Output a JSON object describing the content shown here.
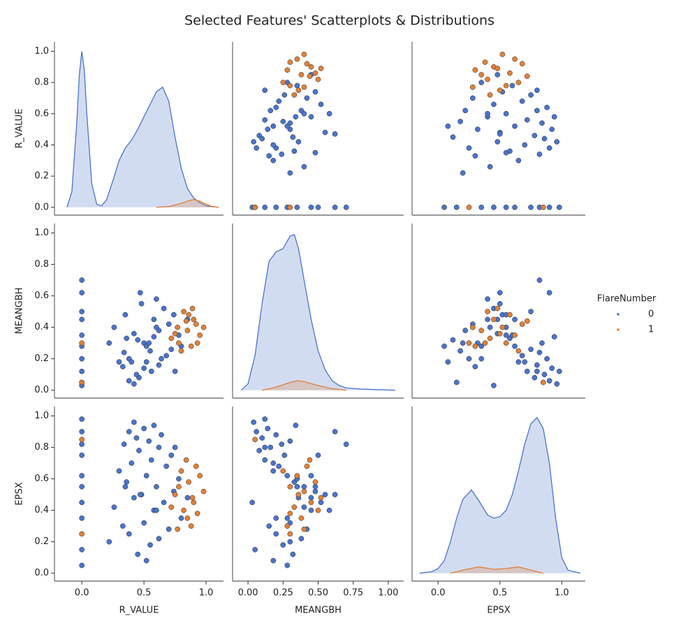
{
  "chart_data": {
    "type": "pairplot",
    "title": "Selected Features' Scatterplots & Distributions",
    "legend_title": "FlareNumber",
    "legend_position": "right",
    "variables": [
      {
        "name": "R_VALUE",
        "xlim": [
          -0.22,
          1.14
        ],
        "ylim": [
          -0.05,
          1.06
        ],
        "xticks": [
          {
            "value": 0,
            "label": "0.0"
          },
          {
            "value": 0.5,
            "label": "0.5"
          },
          {
            "value": 1,
            "label": "1.0"
          }
        ],
        "yticks": [
          {
            "value": 0,
            "label": "0.0"
          },
          {
            "value": 0.2,
            "label": "0.2"
          },
          {
            "value": 0.4,
            "label": "0.4"
          },
          {
            "value": 0.6,
            "label": "0.6"
          },
          {
            "value": 0.8,
            "label": "0.8"
          },
          {
            "value": 1,
            "label": "1.0"
          }
        ]
      },
      {
        "name": "MEANGBH",
        "xlim": [
          -0.11,
          1.11
        ],
        "ylim": [
          -0.05,
          1.06
        ],
        "xticks": [
          {
            "value": 0,
            "label": "0.00"
          },
          {
            "value": 0.25,
            "label": "0.25"
          },
          {
            "value": 0.5,
            "label": "0.50"
          },
          {
            "value": 0.75,
            "label": "0.75"
          },
          {
            "value": 1,
            "label": "1.00"
          }
        ],
        "yticks": [
          {
            "value": 0,
            "label": "0.0"
          },
          {
            "value": 0.2,
            "label": "0.2"
          },
          {
            "value": 0.4,
            "label": "0.4"
          },
          {
            "value": 0.6,
            "label": "0.6"
          },
          {
            "value": 0.8,
            "label": "0.8"
          },
          {
            "value": 1,
            "label": "1.0"
          }
        ]
      },
      {
        "name": "EPSX",
        "xlim": [
          -0.21,
          1.19
        ],
        "ylim": [
          -0.05,
          1.06
        ],
        "xticks": [
          {
            "value": 0,
            "label": "0.0"
          },
          {
            "value": 0.5,
            "label": "0.5"
          },
          {
            "value": 1,
            "label": "1.0"
          }
        ],
        "yticks": [
          {
            "value": 0,
            "label": "0.0"
          },
          {
            "value": 0.2,
            "label": "0.2"
          },
          {
            "value": 0.4,
            "label": "0.4"
          },
          {
            "value": 0.6,
            "label": "0.6"
          },
          {
            "value": 0.8,
            "label": "0.8"
          },
          {
            "value": 1,
            "label": "1.0"
          }
        ]
      }
    ],
    "series": [
      {
        "name": "0",
        "color": "#4a74c9",
        "values": [
          [
            0,
            0,
            0,
            0,
            0,
            0,
            0,
            0,
            0,
            0,
            0.45,
            0.55,
            0.62,
            0.38,
            0.7,
            0.5,
            0.33,
            0.58,
            0.66,
            0.42,
            0.74,
            0.48,
            0.6,
            0.36,
            0.52,
            0.68,
            0.4,
            0.56,
            0.72,
            0.46,
            0.62,
            0.34,
            0.54,
            0.44,
            0.64,
            0.5,
            0.38,
            0.58,
            0.3,
            0.78,
            0.26,
            0.8,
            0.47,
            0.22,
            0.85,
            0.52,
            0.6,
            0.42,
            0.75,
            0.35
          ],
          [
            0.05,
            0.2,
            0.35,
            0.5,
            0.62,
            0.12,
            0.28,
            0.45,
            0.7,
            0.03,
            0.32,
            0.25,
            0.38,
            0.2,
            0.42,
            0.3,
            0.15,
            0.45,
            0.52,
            0.36,
            0.48,
            0.55,
            0.4,
            0.33,
            0.28,
            0.22,
            0.18,
            0.12,
            0.26,
            0.08,
            0.16,
            0.24,
            0.3,
            0.1,
            0.2,
            0.14,
            0.06,
            0.34,
            0.18,
            0.35,
            0.4,
            0.28,
            0.62,
            0.3,
            0.45,
            0.18,
            0.58,
            0.04,
            0.12,
            0.48
          ],
          [
            0.15,
            0.35,
            0.55,
            0.75,
            0.9,
            0.98,
            0.05,
            0.62,
            0.82,
            0.45,
            0.12,
            0.18,
            0.22,
            0.25,
            0.28,
            0.32,
            0.3,
            0.4,
            0.45,
            0.48,
            0.52,
            0.5,
            0.55,
            0.58,
            0.62,
            0.68,
            0.7,
            0.72,
            0.75,
            0.78,
            0.8,
            0.82,
            0.84,
            0.86,
            0.88,
            0.92,
            0.9,
            0.94,
            0.65,
            0.6,
            0.42,
            0.35,
            0.5,
            0.2,
            0.48,
            0.08,
            0.4,
            0.96,
            0.8,
            0.55
          ]
        ],
        "kde": [
          {
            "x": [
              -0.12,
              -0.08,
              -0.04,
              -0.02,
              0,
              0.02,
              0.04,
              0.08,
              0.12,
              0.16,
              0.2,
              0.25,
              0.3,
              0.35,
              0.4,
              0.45,
              0.5,
              0.55,
              0.6,
              0.65,
              0.7,
              0.75,
              0.8,
              0.85,
              0.9,
              0.95,
              1.0,
              1.05,
              1.1
            ],
            "values": [
              0,
              0.1,
              0.55,
              0.85,
              1.0,
              0.88,
              0.6,
              0.15,
              0.02,
              0.01,
              0.05,
              0.17,
              0.3,
              0.38,
              0.43,
              0.5,
              0.58,
              0.66,
              0.74,
              0.77,
              0.68,
              0.45,
              0.25,
              0.12,
              0.06,
              0.03,
              0.01,
              0.005,
              0
            ]
          },
          {
            "x": [
              -0.05,
              0,
              0.05,
              0.1,
              0.15,
              0.2,
              0.25,
              0.3,
              0.33,
              0.36,
              0.4,
              0.45,
              0.5,
              0.55,
              0.6,
              0.65,
              0.7,
              0.8,
              0.9,
              1.05
            ],
            "values": [
              0,
              0.04,
              0.22,
              0.55,
              0.82,
              0.88,
              0.9,
              0.98,
              0.99,
              0.9,
              0.7,
              0.45,
              0.25,
              0.13,
              0.06,
              0.03,
              0.015,
              0.008,
              0.004,
              0
            ]
          },
          {
            "x": [
              -0.15,
              -0.05,
              0,
              0.05,
              0.1,
              0.15,
              0.2,
              0.27,
              0.33,
              0.4,
              0.45,
              0.5,
              0.55,
              0.6,
              0.65,
              0.7,
              0.75,
              0.8,
              0.85,
              0.9,
              0.95,
              1.0,
              1.05,
              1.15
            ],
            "values": [
              0,
              0.01,
              0.03,
              0.08,
              0.2,
              0.35,
              0.47,
              0.53,
              0.46,
              0.37,
              0.35,
              0.36,
              0.4,
              0.5,
              0.65,
              0.82,
              0.95,
              0.99,
              0.92,
              0.7,
              0.35,
              0.1,
              0.02,
              0
            ]
          }
        ]
      },
      {
        "name": "1",
        "color": "#e0803a",
        "values": [
          [
            0.85,
            0.9,
            0.78,
            0.95,
            0.82,
            0.88,
            0.92,
            0.75,
            0.98,
            0.8,
            0.86,
            0.72,
            0.93,
            0.84,
            0.89,
            0.77,
            0,
            0
          ],
          [
            0.38,
            0.45,
            0.3,
            0.35,
            0.5,
            0.28,
            0.42,
            0.36,
            0.4,
            0.25,
            0.48,
            0.33,
            0.3,
            0.44,
            0.52,
            0.4,
            0.05,
            0.3
          ],
          [
            0.35,
            0.45,
            0.55,
            0.62,
            0.4,
            0.3,
            0.68,
            0.5,
            0.52,
            0.65,
            0.58,
            0.42,
            0.38,
            0.72,
            0.48,
            0.28,
            0.85,
            0.25
          ]
        ],
        "kde": [
          {
            "x": [
              0.6,
              0.7,
              0.8,
              0.85,
              0.9,
              0.95,
              1.0,
              1.05,
              1.1
            ],
            "values": [
              0,
              0.005,
              0.025,
              0.04,
              0.05,
              0.04,
              0.02,
              0.005,
              0
            ]
          },
          {
            "x": [
              0.1,
              0.2,
              0.3,
              0.35,
              0.4,
              0.5,
              0.6,
              0.7
            ],
            "values": [
              0,
              0.02,
              0.05,
              0.06,
              0.055,
              0.03,
              0.01,
              0
            ]
          },
          {
            "x": [
              0.1,
              0.2,
              0.33,
              0.45,
              0.55,
              0.65,
              0.75,
              0.85
            ],
            "values": [
              0,
              0.02,
              0.04,
              0.025,
              0.03,
              0.04,
              0.02,
              0
            ]
          }
        ]
      }
    ]
  }
}
